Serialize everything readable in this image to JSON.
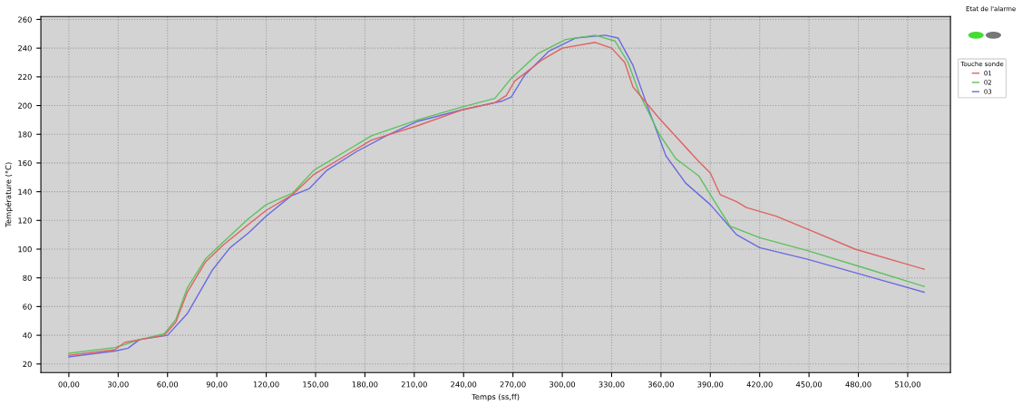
{
  "chart_data": {
    "type": "line",
    "xlabel": "Temps (ss,ff)",
    "ylabel": "Température (°C)",
    "legend_title": "Touche sonde",
    "legend": "top right",
    "grid": true,
    "marker": "none",
    "line_style": "solid",
    "annotations": [
      "Etat de l'alarme"
    ],
    "xlim": [
      -17,
      536
    ],
    "ylim": [
      14,
      262
    ],
    "xticks": [
      {
        "value": 0,
        "label": "00,00"
      },
      {
        "value": 30,
        "label": "30,00"
      },
      {
        "value": 60,
        "label": "60,00"
      },
      {
        "value": 90,
        "label": "90,00"
      },
      {
        "value": 120,
        "label": "120,00"
      },
      {
        "value": 150,
        "label": "150,00"
      },
      {
        "value": 180,
        "label": "180,00"
      },
      {
        "value": 210,
        "label": "210,00"
      },
      {
        "value": 240,
        "label": "240,00"
      },
      {
        "value": 270,
        "label": "270,00"
      },
      {
        "value": 300,
        "label": "300,00"
      },
      {
        "value": 330,
        "label": "330,00"
      },
      {
        "value": 360,
        "label": "360,00"
      },
      {
        "value": 390,
        "label": "390,00"
      },
      {
        "value": 420,
        "label": "420,00"
      },
      {
        "value": 450,
        "label": "450,00"
      },
      {
        "value": 480,
        "label": "480,00"
      },
      {
        "value": 510,
        "label": "510,00"
      }
    ],
    "yticks": [
      20,
      40,
      60,
      80,
      100,
      120,
      140,
      160,
      180,
      200,
      220,
      240,
      260
    ],
    "series": [
      {
        "name": "01",
        "color": "#e06262",
        "x": [
          0,
          28,
          34,
          43,
          58,
          65,
          72,
          83,
          94,
          109,
          120,
          136,
          149,
          168,
          184,
          212,
          239,
          259,
          266,
          271,
          288,
          300,
          320,
          330,
          338,
          343,
          359,
          383,
          390,
          396,
          406,
          412,
          430,
          449,
          478,
          520
        ],
        "values": [
          26,
          30,
          35,
          37,
          40,
          49,
          70,
          91,
          103,
          117,
          127,
          138,
          152,
          165,
          176,
          186,
          197,
          202,
          207,
          217,
          232,
          240,
          244,
          240,
          230,
          213,
          191,
          161,
          153,
          138,
          133,
          129,
          123,
          114,
          100,
          86
        ]
      },
      {
        "name": "02",
        "color": "#5cc25c",
        "x": [
          0,
          28,
          34,
          43,
          58,
          65,
          72,
          83,
          94,
          109,
          120,
          136,
          149,
          168,
          184,
          212,
          239,
          259,
          269,
          285,
          302,
          320,
          332,
          340,
          347,
          359,
          369,
          383,
          390,
          402,
          420,
          449,
          489,
          520
        ],
        "values": [
          27.5,
          31.5,
          33.5,
          37,
          41,
          51,
          73,
          93,
          105,
          121,
          131,
          139,
          155,
          168,
          179,
          190,
          199,
          205,
          219,
          236,
          246,
          249,
          245,
          230,
          208,
          180,
          163,
          151,
          138,
          116,
          108,
          99,
          85,
          74
        ]
      },
      {
        "name": "03",
        "color": "#6a6ae0",
        "x": [
          0,
          28,
          36,
          43,
          60,
          72,
          87,
          98,
          109,
          120,
          135,
          146,
          157,
          175,
          193,
          212,
          239,
          263,
          269,
          277,
          292,
          308,
          326,
          334,
          343,
          351,
          363,
          375,
          390,
          406,
          420,
          449,
          489,
          520
        ],
        "values": [
          25,
          29,
          31,
          37,
          40,
          55,
          85,
          101,
          111,
          123,
          137,
          142,
          155,
          168,
          179,
          189,
          197,
          203,
          206,
          221,
          238,
          247,
          249,
          247,
          228,
          202,
          165,
          146,
          131,
          110,
          101,
          93,
          80,
          70
        ]
      }
    ]
  }
}
